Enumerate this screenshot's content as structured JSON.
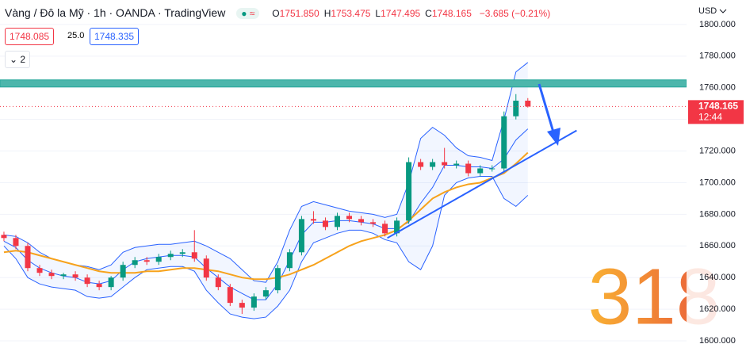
{
  "header": {
    "symbol": "Vàng / Đô la Mỹ · 1h · OANDA · TradingView",
    "ohlc": [
      {
        "label": "O",
        "value": "1751.850"
      },
      {
        "label": "H",
        "value": "1753.475"
      },
      {
        "label": "L",
        "value": "1747.495"
      },
      {
        "label": "C",
        "value": "1748.165"
      }
    ],
    "change": "−3.685 (−0.21%)",
    "bid": "1748.085",
    "spread": "25.0",
    "ask": "1748.335",
    "indicators": "2",
    "currency": "USD",
    "watermark": "318"
  },
  "chart_data": {
    "type": "candlestick",
    "open": [
      1667,
      1665,
      1660,
      1646,
      1643,
      1641,
      1642,
      1640,
      1636,
      1634,
      1640,
      1648,
      1651,
      1650,
      1653,
      1655,
      1656,
      1652,
      1640,
      1634,
      1624,
      1621,
      1628,
      1632,
      1646,
      1656,
      1677,
      1676,
      1672,
      1679,
      1677,
      1675,
      1674,
      1668,
      1676,
      1713,
      1710,
      1713,
      1711,
      1712,
      1706,
      1709,
      1709,
      1742,
      1751.85
    ],
    "high": [
      1669,
      1667,
      1662,
      1648,
      1645,
      1643,
      1644,
      1642,
      1638,
      1641,
      1650,
      1653,
      1653,
      1655,
      1657,
      1658,
      1670,
      1654,
      1642,
      1636,
      1626,
      1630,
      1634,
      1648,
      1658,
      1679,
      1682,
      1678,
      1681,
      1681,
      1679,
      1677,
      1676,
      1678,
      1716,
      1715,
      1715,
      1722,
      1714,
      1714,
      1711,
      1711,
      1745,
      1756,
      1753.475
    ],
    "low": [
      1663,
      1658,
      1644,
      1641,
      1639,
      1639,
      1638,
      1634,
      1632,
      1632,
      1638,
      1646,
      1648,
      1648,
      1651,
      1653,
      1650,
      1638,
      1632,
      1622,
      1617,
      1619,
      1626,
      1630,
      1644,
      1654,
      1674,
      1670,
      1670,
      1675,
      1673,
      1672,
      1666,
      1666,
      1674,
      1708,
      1708,
      1709,
      1709,
      1704,
      1704,
      1707,
      1707,
      1740,
      1747.495
    ],
    "close": [
      1665,
      1660,
      1646,
      1643,
      1641,
      1642,
      1640,
      1636,
      1634,
      1640,
      1648,
      1651,
      1650,
      1653,
      1655,
      1656,
      1652,
      1640,
      1634,
      1624,
      1621,
      1628,
      1632,
      1646,
      1656,
      1677,
      1676,
      1672,
      1679,
      1677,
      1675,
      1674,
      1668,
      1676,
      1713,
      1710,
      1713,
      1711,
      1712,
      1706,
      1709,
      1709,
      1742,
      1751.85,
      1748.165
    ],
    "up_color": "#089981",
    "down_color": "#f23645",
    "bollinger": {
      "color": "#2962ff",
      "upper": [
        1667,
        1666,
        1662,
        1656,
        1652,
        1650,
        1648,
        1647,
        1645,
        1648,
        1656,
        1659,
        1660,
        1661,
        1661,
        1662,
        1663,
        1660,
        1656,
        1652,
        1645,
        1638,
        1637,
        1650,
        1670,
        1685,
        1688,
        1686,
        1684,
        1682,
        1681,
        1680,
        1678,
        1680,
        1700,
        1728,
        1735,
        1730,
        1722,
        1717,
        1716,
        1714,
        1740,
        1770,
        1776
      ],
      "middle": [
        1663,
        1659,
        1651,
        1646,
        1643,
        1641,
        1640,
        1637,
        1636,
        1638,
        1645,
        1650,
        1652,
        1653,
        1654,
        1654,
        1653,
        1646,
        1640,
        1634,
        1630,
        1626,
        1626,
        1636,
        1651,
        1667,
        1675,
        1675,
        1676,
        1676,
        1675,
        1674,
        1671,
        1671,
        1675,
        1687,
        1697,
        1711,
        1711,
        1710,
        1710,
        1709,
        1715,
        1727,
        1734
      ],
      "lower": [
        1660,
        1652,
        1640,
        1636,
        1634,
        1633,
        1632,
        1628,
        1627,
        1628,
        1634,
        1640,
        1645,
        1646,
        1647,
        1647,
        1644,
        1632,
        1624,
        1617,
        1615,
        1614,
        1615,
        1622,
        1632,
        1650,
        1662,
        1665,
        1668,
        1670,
        1670,
        1668,
        1664,
        1662,
        1650,
        1645,
        1660,
        1692,
        1700,
        1703,
        1704,
        1704,
        1690,
        1685,
        1692
      ]
    },
    "ma": {
      "color": "#f7a21b",
      "values": [
        1656,
        1657,
        1656,
        1654,
        1652,
        1650,
        1648,
        1646,
        1644,
        1643,
        1643,
        1643,
        1644,
        1644,
        1645,
        1646,
        1646,
        1645,
        1644,
        1642,
        1640,
        1639,
        1639,
        1640,
        1642,
        1645,
        1648,
        1652,
        1656,
        1660,
        1663,
        1665,
        1667,
        1670,
        1676,
        1683,
        1690,
        1694,
        1697,
        1699,
        1700,
        1703,
        1706,
        1712,
        1719
      ]
    },
    "trendline": {
      "color": "#2962ff",
      "x": [
        32.2,
        48.1
      ],
      "y": [
        1665,
        1733
      ]
    },
    "zone": {
      "color": "#4db6ac",
      "range": [
        1760.5,
        1765
      ]
    },
    "last_price": {
      "value": 1748.165,
      "label": "1748.165",
      "countdown": "12:44",
      "color": "#f23645"
    },
    "xlim": [
      -0.33,
      57.33
    ],
    "ylim": [
      1598,
      1815.5
    ],
    "yticks": [
      {
        "value": 1600,
        "label": "1600.000"
      },
      {
        "value": 1620,
        "label": "1620.000"
      },
      {
        "value": 1640,
        "label": "1640.000"
      },
      {
        "value": 1660,
        "label": "1660.000"
      },
      {
        "value": 1680,
        "label": "1680.000"
      },
      {
        "value": 1700,
        "label": "1700.000"
      },
      {
        "value": 1720,
        "label": "1720.000"
      },
      {
        "value": 1740,
        "label": "1740.000"
      },
      {
        "value": 1760,
        "label": "1760.000"
      },
      {
        "value": 1780,
        "label": "1780.000"
      },
      {
        "value": 1800,
        "label": "1800.000"
      }
    ],
    "grid": true
  }
}
